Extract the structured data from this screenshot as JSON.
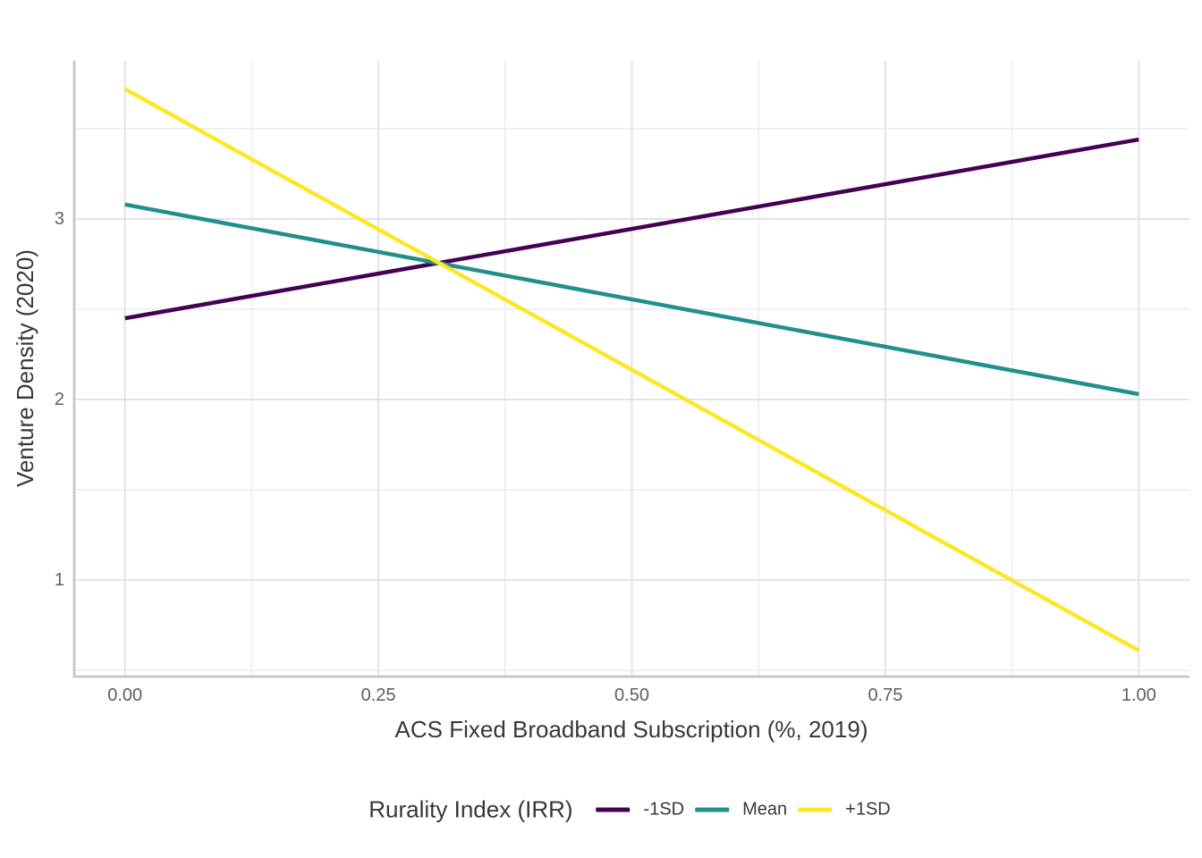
{
  "axes": {
    "x_title": "ACS Fixed Broadband Subscription (%, 2019)",
    "y_title": "Venture Density (2020)"
  },
  "legend": {
    "title": "Rurality Index (IRR)",
    "items": [
      {
        "label": "-1SD",
        "name": "minus-1sd",
        "color": "#440154"
      },
      {
        "label": "Mean",
        "name": "mean",
        "color": "#21908C"
      },
      {
        "label": "+1SD",
        "name": "plus-1sd",
        "color": "#FDE725"
      }
    ]
  },
  "chart_data": {
    "type": "line",
    "title": "",
    "xlabel": "ACS Fixed Broadband Subscription (%, 2019)",
    "ylabel": "Venture Density (2020)",
    "legend_title": "Rurality Index (IRR)",
    "legend_position": "bottom",
    "grid": "major+minor",
    "xlim": [
      -0.05,
      1.05
    ],
    "ylim": [
      0.466,
      3.876
    ],
    "x_ticks": [
      {
        "value": 0.0,
        "label": "0.00"
      },
      {
        "value": 0.25,
        "label": "0.25"
      },
      {
        "value": 0.5,
        "label": "0.50"
      },
      {
        "value": 0.75,
        "label": "0.75"
      },
      {
        "value": 1.0,
        "label": "1.00"
      }
    ],
    "y_ticks": [
      {
        "value": 1,
        "label": "1"
      },
      {
        "value": 2,
        "label": "2"
      },
      {
        "value": 3,
        "label": "3"
      }
    ],
    "x_minor": [
      0.125,
      0.375,
      0.625,
      0.875
    ],
    "y_minor": [
      0.5,
      1.5,
      2.5,
      3.5
    ],
    "series": [
      {
        "name": "-1SD",
        "id": "minus-1sd",
        "color": "#440154",
        "x": [
          0,
          1
        ],
        "y": [
          2.45,
          3.44
        ]
      },
      {
        "name": "Mean",
        "id": "mean",
        "color": "#21908C",
        "x": [
          0,
          1
        ],
        "y": [
          3.08,
          2.03
        ]
      },
      {
        "name": "+1SD",
        "id": "plus-1sd",
        "color": "#FDE725",
        "x": [
          0,
          1
        ],
        "y": [
          3.72,
          0.61
        ]
      }
    ]
  },
  "colors": {
    "background": "#FFFFFF",
    "grid_major": "#E3E3E3",
    "grid_minor": "#ECECEC",
    "axis_line": "#C9C9C9",
    "tick_text": "#5E5E5E",
    "title_text": "#383838"
  }
}
